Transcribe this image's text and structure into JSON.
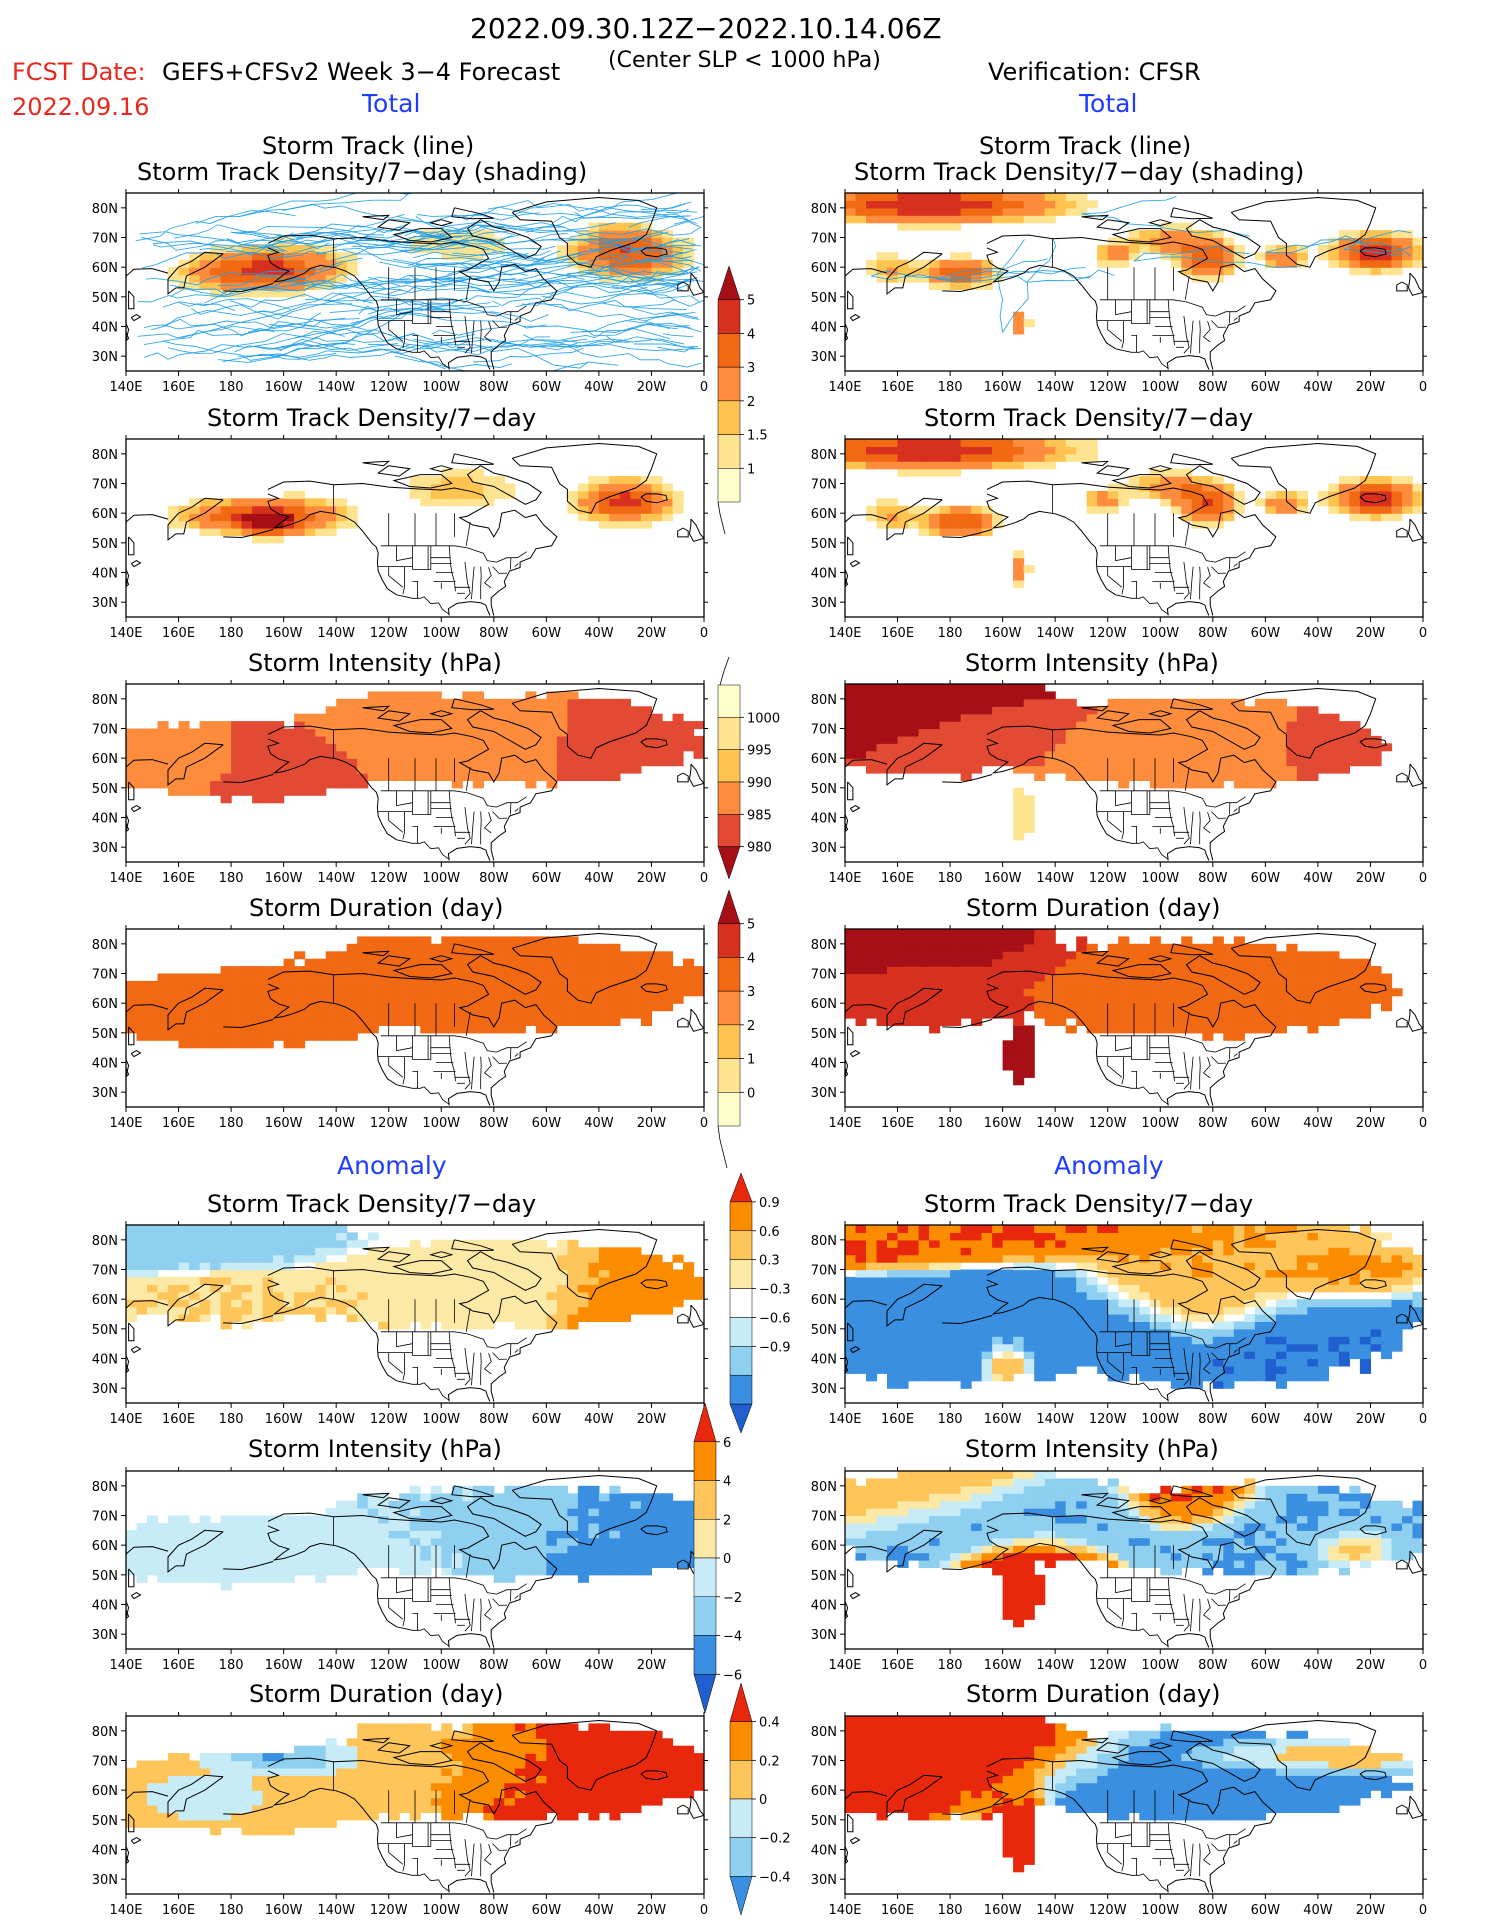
{
  "header": {
    "period": "2022.09.30.12Z−2022.10.14.06Z",
    "fcst_label": "FCST Date:",
    "fcst_date": "2022.09.16",
    "model": "GEFS+CFSv2 Week 3−4 Forecast",
    "criterion": "(Center SLP < 1000 hPa)",
    "verification": "Verification: CFSR"
  },
  "section_labels": {
    "total_left": "Total",
    "total_right": "Total",
    "anomaly_left": "Anomaly",
    "anomaly_right": "Anomaly"
  },
  "panel_titles": {
    "track_line": "Storm Track (line)",
    "track_density_shading": "Storm Track Density/7−day (shading)",
    "track_density": "Storm Track Density/7−day",
    "intensity": "Storm Intensity (hPa)",
    "duration": "Storm Duration (day)"
  },
  "axes": {
    "lon_ticks": [
      "140E",
      "160E",
      "180",
      "160W",
      "140W",
      "120W",
      "100W",
      "80W",
      "60W",
      "40W",
      "20W",
      "0"
    ],
    "lat_ticks": [
      "80N",
      "70N",
      "60N",
      "50N",
      "40N",
      "30N"
    ],
    "lon_range": [
      140,
      360
    ],
    "lat_range": [
      25,
      85
    ]
  },
  "colorbars": {
    "density": {
      "labels": [
        "5",
        "4",
        "3",
        "2",
        "1.5",
        "1"
      ],
      "colors": [
        "#a50f15",
        "#d7301f",
        "#f16913",
        "#fd8d3c",
        "#fec44f",
        "#fee391",
        "#ffffcc"
      ]
    },
    "intensity": {
      "labels": [
        "1000",
        "995",
        "990",
        "985",
        "980"
      ],
      "colors": [
        "#ffffcc",
        "#fee391",
        "#fec44f",
        "#fd8d3c",
        "#e34a33",
        "#a50f15"
      ]
    },
    "duration": {
      "labels": [
        "5",
        "4",
        "3",
        "2",
        "1",
        "0"
      ],
      "colors": [
        "#a50f15",
        "#d7301f",
        "#f16913",
        "#fd8d3c",
        "#fec44f",
        "#fee391",
        "#ffffcc"
      ]
    },
    "density_anom": {
      "labels": [
        "0.9",
        "0.6",
        "0.3",
        "−0.3",
        "−0.6",
        "−0.9"
      ],
      "colors": [
        "#e8280c",
        "#fb8c00",
        "#fdc55a",
        "#fde9a6",
        "#ffffff",
        "#c7ecf7",
        "#8fcff0",
        "#3a8fe0",
        "#1f5fcf"
      ]
    },
    "intensity_anom": {
      "labels": [
        "6",
        "4",
        "2",
        "0",
        "−2",
        "−4",
        "−6"
      ],
      "colors": [
        "#e8280c",
        "#fb8c00",
        "#fdc55a",
        "#fde9a6",
        "#c7ecf7",
        "#8fcff0",
        "#3a8fe0",
        "#1f5fcf"
      ]
    },
    "duration_anom": {
      "labels": [
        "0.4",
        "0.2",
        "0",
        "−0.2",
        "−0.4"
      ],
      "colors": [
        "#e8280c",
        "#fb8c00",
        "#fdc55a",
        "#c7ecf7",
        "#8fcff0",
        "#3a8fe0"
      ]
    }
  },
  "maps": {
    "fc_track": {
      "palette": "density",
      "tracks": true,
      "blobs": [
        [
          -175,
          57,
          28,
          7,
          3.2
        ],
        [
          -30,
          63,
          22,
          8,
          3.8
        ],
        [
          -95,
          67,
          28,
          8,
          1.5
        ],
        [
          -160,
          60,
          25,
          8,
          1.8
        ],
        [
          -35,
          70,
          12,
          6,
          1.2
        ]
      ]
    },
    "ob_track": {
      "palette": "density",
      "tracks": true,
      "blobs": [
        [
          -190,
          80,
          50,
          6,
          5
        ],
        [
          -178,
          57,
          14,
          5,
          3.8
        ],
        [
          -120,
          63,
          8,
          4,
          2.5
        ],
        [
          -155,
          40,
          3,
          5,
          3
        ],
        [
          -84,
          62,
          12,
          7,
          3.6
        ],
        [
          -20,
          64,
          16,
          6,
          5
        ],
        [
          -55,
          62,
          8,
          4,
          3
        ],
        [
          -100,
          68,
          16,
          5,
          2.2
        ],
        [
          -205,
          58,
          10,
          6,
          2
        ]
      ]
    },
    "fc_density": {
      "palette": "density",
      "blobs": [
        [
          -180,
          58,
          25,
          6,
          3.3
        ],
        [
          -168,
          56,
          10,
          4,
          4.3
        ],
        [
          -32,
          63,
          18,
          7,
          4.5
        ],
        [
          -95,
          67,
          26,
          8,
          1.8
        ],
        [
          -150,
          58,
          18,
          7,
          2
        ]
      ]
    },
    "ob_density": {
      "palette": "density",
      "blobs": [
        [
          -190,
          80,
          52,
          6,
          5
        ],
        [
          -178,
          56,
          14,
          5,
          4.2
        ],
        [
          -124,
          63,
          8,
          4,
          2.5
        ],
        [
          -155,
          40,
          3,
          5,
          3.2
        ],
        [
          -84,
          62,
          12,
          7,
          3.8
        ],
        [
          -20,
          64,
          16,
          6,
          5
        ],
        [
          -55,
          62,
          8,
          4,
          3
        ],
        [
          -100,
          68,
          16,
          5,
          2.2
        ],
        [
          -205,
          58,
          10,
          6,
          2
        ]
      ]
    },
    "fc_intensity": {
      "palette": "intensity",
      "cells": true,
      "val": [
        [
          -175,
          56,
          30,
          9,
          984
        ],
        [
          -25,
          64,
          20,
          9,
          982
        ],
        [
          -100,
          66,
          30,
          10,
          989
        ],
        [
          -200,
          58,
          20,
          8,
          990
        ]
      ],
      "mask": [
        [
          -180,
          58,
          60,
          14
        ],
        [
          -85,
          65,
          90,
          16
        ],
        [
          -118,
          77,
          18,
          4
        ]
      ]
    },
    "ob_intensity": {
      "palette": "intensity",
      "cells": true,
      "val": [
        [
          -185,
          77,
          30,
          8,
          980
        ],
        [
          -160,
          68,
          25,
          8,
          985
        ],
        [
          -25,
          64,
          20,
          7,
          984
        ],
        [
          -100,
          64,
          30,
          8,
          989
        ],
        [
          -155,
          40,
          4,
          8,
          998
        ]
      ],
      "mask": [
        [
          -190,
          70,
          68,
          18
        ],
        [
          -90,
          64,
          80,
          16
        ],
        [
          -155,
          40,
          5,
          10
        ]
      ]
    },
    "fc_duration": {
      "palette": "duration",
      "cells": true,
      "val": [
        [
          -175,
          55,
          40,
          10,
          3.7
        ],
        [
          -90,
          68,
          60,
          12,
          3.5
        ]
      ],
      "mask": [
        [
          -178,
          57,
          62,
          14
        ],
        [
          -85,
          65,
          90,
          17
        ],
        [
          -118,
          78,
          18,
          4
        ]
      ]
    },
    "ob_duration": {
      "palette": "duration",
      "cells": true,
      "val": [
        [
          -190,
          77,
          40,
          10,
          5.2
        ],
        [
          -155,
          42,
          5,
          12,
          5.2
        ],
        [
          -190,
          60,
          22,
          8,
          4.2
        ],
        [
          -90,
          65,
          50,
          12,
          3.4
        ]
      ],
      "mask": [
        [
          -190,
          70,
          66,
          20
        ],
        [
          -90,
          64,
          82,
          17
        ],
        [
          -155,
          42,
          6,
          12
        ]
      ]
    },
    "fc_density_anom": {
      "palette": "density_anom",
      "cells": true,
      "val": [
        [
          -200,
          80,
          40,
          6,
          -0.35
        ],
        [
          -30,
          62,
          15,
          8,
          0.7
        ],
        [
          -95,
          65,
          30,
          8,
          0.25
        ],
        [
          -170,
          57,
          30,
          6,
          0.3
        ]
      ],
      "mask": [
        [
          -185,
          70,
          70,
          20
        ],
        [
          -85,
          64,
          90,
          16
        ]
      ]
    },
    "ob_density_anom": {
      "palette": "density_anom",
      "cells": true,
      "val": [
        [
          -190,
          80,
          50,
          6,
          0.9
        ],
        [
          -160,
          50,
          40,
          12,
          -0.8
        ],
        [
          -30,
          50,
          30,
          12,
          -0.85
        ],
        [
          -80,
          66,
          30,
          10,
          0.6
        ],
        [
          -160,
          38,
          6,
          5,
          0.9
        ],
        [
          -30,
          65,
          20,
          6,
          0.9
        ]
      ],
      "mask": [
        [
          -180,
          60,
          90,
          32
        ],
        [
          -80,
          60,
          90,
          32
        ]
      ]
    },
    "fc_intensity_anom": {
      "palette": "intensity_anom",
      "cells": true,
      "val": [
        [
          -170,
          55,
          60,
          12,
          -1
        ],
        [
          -40,
          62,
          40,
          12,
          -3.5
        ],
        [
          -100,
          66,
          40,
          12,
          -1.5
        ]
      ],
      "mask": [
        [
          -180,
          57,
          65,
          12
        ],
        [
          -70,
          63,
          95,
          16
        ]
      ]
    },
    "ob_intensity_anom": {
      "palette": "intensity_anom",
      "cells": true,
      "val": [
        [
          -200,
          78,
          30,
          8,
          2.5
        ],
        [
          -150,
          48,
          15,
          10,
          6
        ],
        [
          -90,
          74,
          15,
          6,
          5
        ],
        [
          -160,
          68,
          35,
          8,
          -3
        ],
        [
          -50,
          62,
          30,
          10,
          -3
        ],
        [
          -30,
          58,
          10,
          4,
          4
        ]
      ],
      "mask": [
        [
          -170,
          68,
          70,
          18
        ],
        [
          -70,
          64,
          80,
          16
        ],
        [
          -155,
          45,
          8,
          14
        ]
      ]
    },
    "fc_duration_anom": {
      "palette": "duration_anom",
      "cells": true,
      "val": [
        [
          -175,
          58,
          50,
          10,
          0.15
        ],
        [
          -40,
          65,
          40,
          12,
          0.35
        ],
        [
          -110,
          70,
          30,
          10,
          0.15
        ],
        [
          -190,
          57,
          20,
          6,
          -0.2
        ],
        [
          -160,
          70,
          20,
          5,
          -0.4
        ]
      ],
      "mask": [
        [
          -178,
          58,
          65,
          14
        ],
        [
          -80,
          65,
          90,
          17
        ],
        [
          -118,
          78,
          18,
          4
        ]
      ]
    },
    "ob_duration_anom": {
      "palette": "duration_anom",
      "cells": true,
      "val": [
        [
          -190,
          75,
          50,
          12,
          0.4
        ],
        [
          -155,
          44,
          8,
          12,
          0.4
        ],
        [
          -80,
          62,
          45,
          14,
          -0.45
        ],
        [
          -50,
          70,
          30,
          4,
          0.35
        ]
      ],
      "mask": [
        [
          -190,
          68,
          70,
          20
        ],
        [
          -85,
          64,
          80,
          16
        ],
        [
          -155,
          42,
          6,
          12
        ]
      ]
    }
  }
}
